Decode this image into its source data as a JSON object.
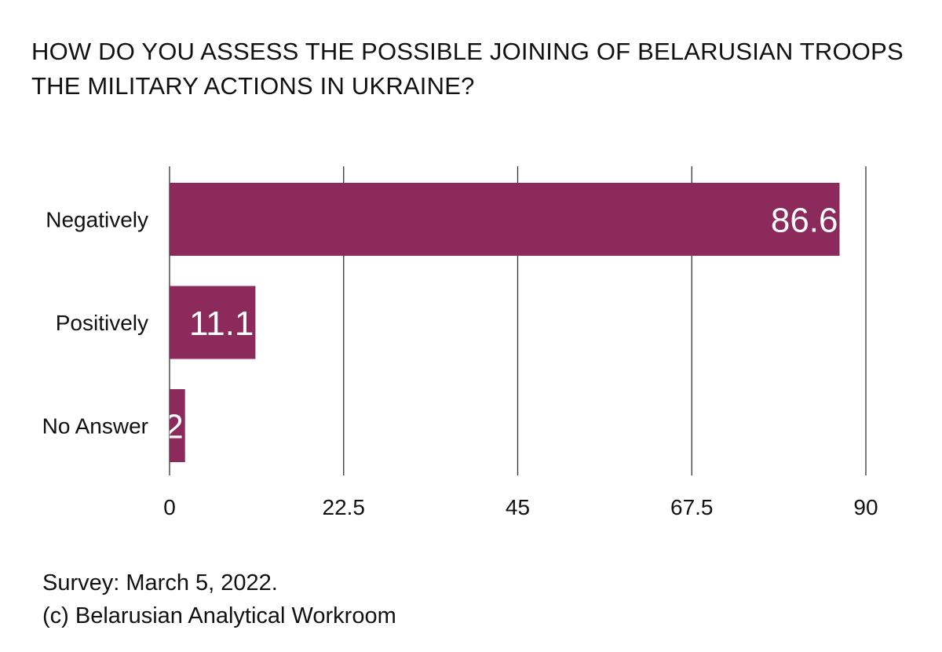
{
  "chart_data": {
    "type": "bar",
    "orientation": "horizontal",
    "title_lines": [
      "HOW DO YOU ASSESS THE POSSIBLE JOINING OF BELARUSIAN TROOPS",
      "THE MILITARY ACTIONS IN UKRAINE?"
    ],
    "categories": [
      "Negatively",
      "Positively",
      "No Answer"
    ],
    "values": [
      86.6,
      11.1,
      2
    ],
    "value_labels": [
      "86.6",
      "11.1",
      "2"
    ],
    "xlim": [
      0,
      90
    ],
    "ticks": [
      0,
      22.5,
      45,
      67.5,
      90
    ],
    "tick_labels": [
      "0",
      "22.5",
      "45",
      "67.5",
      "90"
    ],
    "grid": true,
    "bar_color": "#8b2a5b",
    "label_color": "#ffffff"
  },
  "footer": {
    "line1": "Survey: March 5, 2022.",
    "line2": "(c) Belarusian Analytical Workroom"
  }
}
